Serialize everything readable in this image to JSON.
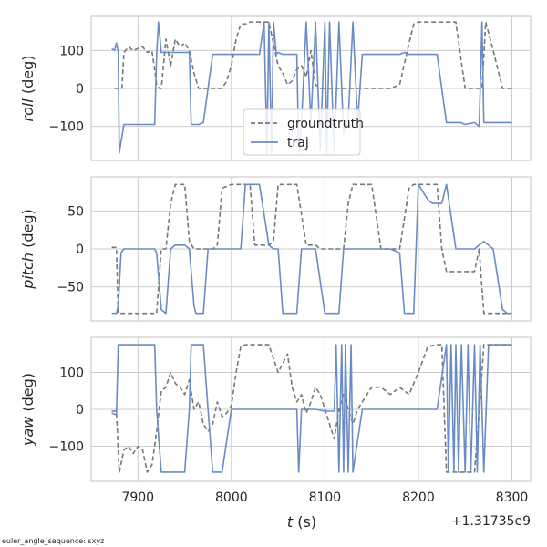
{
  "footer_text": "euler_angle_sequence: sxyz",
  "xaxis": {
    "label_var": "t",
    "label_unit": " (s)",
    "offset_label": "+1.31735e9",
    "ticks": [
      7900,
      8000,
      8100,
      8200,
      8300
    ],
    "tick_labels": [
      "7900",
      "8000",
      "8100",
      "8200",
      "8300"
    ],
    "lim": [
      7850,
      8320
    ]
  },
  "legend": {
    "entries": [
      {
        "label": "groundtruth",
        "color": "#777777",
        "dash": true
      },
      {
        "label": "traj",
        "color": "#6a8cc4",
        "dash": false
      }
    ]
  },
  "colors": {
    "groundtruth": "#777777",
    "traj": "#6a8cc4",
    "grid": "#cccccc",
    "frame": "#cccccc"
  },
  "chart_data": [
    {
      "type": "line",
      "ylabel_var": "roll",
      "ylabel_unit": " (deg)",
      "ylim": [
        -190,
        190
      ],
      "yticks": [
        -100,
        0,
        100
      ],
      "ytick_labels": [
        "−100",
        "0",
        "100"
      ],
      "grid": true,
      "legend_position": "bottom-center",
      "series": [
        {
          "name": "groundtruth",
          "style": "dashed",
          "color": "#777777",
          "x": [
            7875,
            7883,
            7885,
            7890,
            7895,
            7900,
            7905,
            7910,
            7915,
            7920,
            7923,
            7925,
            7930,
            7935,
            7940,
            7945,
            7950,
            7955,
            7960,
            7965,
            7970,
            7975,
            7980,
            7985,
            7990,
            7995,
            8000,
            8005,
            8010,
            8015,
            8020,
            8030,
            8040,
            8050,
            8055,
            8060,
            8065,
            8070,
            8075,
            8080,
            8085,
            8090,
            8095,
            8100,
            8110,
            8120,
            8130,
            8140,
            8150,
            8160,
            8170,
            8180,
            8190,
            8195,
            8200,
            8210,
            8220,
            8230,
            8240,
            8250,
            8260,
            8268,
            8272,
            8280,
            8290,
            8300
          ],
          "y": [
            0,
            0,
            95,
            110,
            100,
            105,
            110,
            95,
            100,
            10,
            0,
            0,
            130,
            60,
            130,
            110,
            120,
            100,
            40,
            0,
            0,
            0,
            0,
            0,
            0,
            20,
            60,
            130,
            170,
            170,
            175,
            175,
            175,
            60,
            40,
            10,
            20,
            50,
            60,
            30,
            100,
            10,
            0,
            0,
            0,
            0,
            0,
            0,
            0,
            0,
            0,
            10,
            120,
            170,
            175,
            175,
            175,
            175,
            175,
            0,
            0,
            0,
            175,
            100,
            0,
            0
          ]
        },
        {
          "name": "traj",
          "style": "solid",
          "color": "#6a8cc4",
          "x": [
            7872,
            7875,
            7877,
            7879,
            7880,
            7885,
            7890,
            7900,
            7910,
            7915,
            7918,
            7920,
            7922,
            7925,
            7930,
            7940,
            7950,
            7955,
            7957,
            7960,
            7962,
            7965,
            7970,
            7980,
            7990,
            7995,
            8000,
            8010,
            8020,
            8030,
            8035,
            8038,
            8040,
            8043,
            8045,
            8048,
            8050,
            8055,
            8060,
            8065,
            8068,
            8070,
            8072,
            8075,
            8080,
            8085,
            8090,
            8095,
            8100,
            8102,
            8105,
            8110,
            8115,
            8120,
            8125,
            8130,
            8135,
            8140,
            8150,
            8160,
            8170,
            8180,
            8185,
            8190,
            8200,
            8210,
            8220,
            8230,
            8235,
            8240,
            8245,
            8250,
            8260,
            8265,
            8268,
            8270,
            8275,
            8280,
            8290,
            8300
          ],
          "y": [
            105,
            100,
            120,
            95,
            -170,
            -95,
            -95,
            -95,
            -95,
            -95,
            -95,
            90,
            175,
            95,
            95,
            95,
            95,
            95,
            -95,
            -95,
            -95,
            -95,
            -90,
            90,
            90,
            90,
            90,
            90,
            90,
            90,
            175,
            -170,
            175,
            -170,
            175,
            90,
            95,
            90,
            90,
            90,
            90,
            90,
            -170,
            -90,
            175,
            -90,
            175,
            -160,
            175,
            -170,
            175,
            -170,
            175,
            -120,
            -80,
            175,
            -90,
            90,
            90,
            90,
            90,
            90,
            95,
            90,
            90,
            90,
            90,
            -90,
            -90,
            -90,
            -90,
            -95,
            -90,
            -100,
            175,
            -90,
            -90,
            -90,
            -90,
            -90
          ]
        }
      ]
    },
    {
      "type": "line",
      "ylabel_var": "pitch",
      "ylabel_unit": " (deg)",
      "ylim": [
        -95,
        95
      ],
      "yticks": [
        -50,
        0,
        50
      ],
      "ytick_labels": [
        "−50",
        "0",
        "50"
      ],
      "grid": true,
      "series": [
        {
          "name": "groundtruth",
          "style": "dashed",
          "color": "#777777",
          "x": [
            7872,
            7877,
            7879,
            7885,
            7890,
            7900,
            7910,
            7915,
            7920,
            7925,
            7930,
            7935,
            7940,
            7945,
            7950,
            7955,
            7960,
            7965,
            7970,
            7975,
            7980,
            7985,
            7990,
            8000,
            8010,
            8015,
            8020,
            8025,
            8030,
            8040,
            8045,
            8050,
            8055,
            8060,
            8070,
            8080,
            8090,
            8095,
            8100,
            8110,
            8120,
            8125,
            8130,
            8140,
            8150,
            8160,
            8170,
            8180,
            8190,
            8195,
            8200,
            8210,
            8220,
            8225,
            8230,
            8240,
            8250,
            8260,
            8265,
            8270,
            8280,
            8290,
            8300
          ],
          "y": [
            2,
            2,
            -85,
            -85,
            -85,
            -85,
            -85,
            -85,
            -85,
            0,
            0,
            60,
            85,
            85,
            85,
            10,
            0,
            0,
            0,
            0,
            0,
            5,
            80,
            85,
            85,
            85,
            85,
            5,
            5,
            5,
            10,
            85,
            85,
            85,
            85,
            5,
            5,
            0,
            0,
            0,
            0,
            60,
            85,
            85,
            85,
            0,
            0,
            0,
            80,
            85,
            85,
            85,
            85,
            0,
            -30,
            -30,
            -30,
            -30,
            0,
            -85,
            -85,
            -85,
            -85
          ]
        },
        {
          "name": "traj",
          "style": "solid",
          "color": "#6a8cc4",
          "x": [
            7872,
            7877,
            7879,
            7882,
            7885,
            7890,
            7900,
            7910,
            7915,
            7918,
            7920,
            7925,
            7930,
            7935,
            7940,
            7945,
            7950,
            7955,
            7960,
            7962,
            7965,
            7970,
            7975,
            7980,
            7990,
            8000,
            8010,
            8015,
            8020,
            8030,
            8040,
            8045,
            8050,
            8055,
            8060,
            8070,
            8075,
            8080,
            8090,
            8100,
            8105,
            8110,
            8115,
            8120,
            8130,
            8140,
            8150,
            8160,
            8170,
            8180,
            8185,
            8190,
            8195,
            8200,
            8210,
            8215,
            8220,
            8225,
            8230,
            8240,
            8250,
            8260,
            8265,
            8270,
            8280,
            8290,
            8295,
            8300
          ],
          "y": [
            -85,
            -85,
            -75,
            -5,
            0,
            0,
            0,
            0,
            0,
            0,
            -5,
            -80,
            -85,
            0,
            5,
            5,
            5,
            0,
            -75,
            -85,
            -85,
            -85,
            0,
            0,
            0,
            0,
            0,
            85,
            85,
            85,
            5,
            0,
            0,
            -85,
            -85,
            -85,
            0,
            0,
            0,
            -85,
            -85,
            -85,
            -85,
            0,
            0,
            0,
            0,
            0,
            0,
            -5,
            -85,
            -85,
            -85,
            85,
            65,
            60,
            60,
            60,
            85,
            0,
            0,
            0,
            5,
            10,
            0,
            -80,
            -85,
            -85
          ]
        }
      ]
    },
    {
      "type": "line",
      "ylabel_var": "yaw",
      "ylabel_unit": " (deg)",
      "ylim": [
        -195,
        195
      ],
      "yticks": [
        -100,
        0,
        100
      ],
      "ytick_labels": [
        "−100",
        "0",
        "100"
      ],
      "grid": true,
      "series": [
        {
          "name": "groundtruth",
          "style": "dashed",
          "color": "#777777",
          "x": [
            7872,
            7877,
            7880,
            7885,
            7890,
            7895,
            7900,
            7905,
            7910,
            7915,
            7920,
            7925,
            7930,
            7935,
            7940,
            7945,
            7950,
            7955,
            7960,
            7965,
            7970,
            7975,
            7980,
            7985,
            7990,
            7995,
            8000,
            8005,
            8010,
            8015,
            8020,
            8030,
            8040,
            8050,
            8060,
            8065,
            8070,
            8075,
            8080,
            8085,
            8090,
            8095,
            8100,
            8105,
            8110,
            8115,
            8120,
            8125,
            8130,
            8135,
            8140,
            8150,
            8160,
            8170,
            8180,
            8190,
            8200,
            8210,
            8220,
            8225,
            8230,
            8240,
            8250,
            8260,
            8265,
            8270,
            8280,
            8290,
            8300
          ],
          "y": [
            -5,
            -5,
            -170,
            -110,
            -100,
            -120,
            -100,
            -110,
            -170,
            -150,
            -60,
            50,
            60,
            100,
            70,
            60,
            40,
            80,
            0,
            20,
            -40,
            -60,
            -40,
            20,
            -20,
            -10,
            10,
            100,
            170,
            175,
            175,
            175,
            175,
            100,
            150,
            60,
            20,
            40,
            -10,
            20,
            60,
            40,
            0,
            -40,
            -80,
            0,
            40,
            0,
            -40,
            0,
            20,
            60,
            60,
            40,
            60,
            40,
            100,
            170,
            175,
            175,
            -170,
            -170,
            -170,
            -170,
            -10,
            175,
            175,
            175,
            175
          ]
        },
        {
          "name": "traj",
          "style": "solid",
          "color": "#6a8cc4",
          "x": [
            7872,
            7877,
            7879,
            7881,
            7885,
            7890,
            7900,
            7910,
            7915,
            7918,
            7920,
            7925,
            7930,
            7940,
            7950,
            7955,
            7957,
            7960,
            7965,
            7970,
            7975,
            7980,
            7985,
            7990,
            8000,
            8010,
            8020,
            8030,
            8040,
            8050,
            8060,
            8070,
            8072,
            8075,
            8080,
            8090,
            8100,
            8110,
            8112,
            8115,
            8118,
            8120,
            8122,
            8125,
            8128,
            8130,
            8140,
            8150,
            8160,
            8170,
            8180,
            8190,
            8200,
            8210,
            8220,
            8230,
            8232,
            8235,
            8238,
            8240,
            8243,
            8246,
            8250,
            8253,
            8256,
            8260,
            8263,
            8266,
            8270,
            8275,
            8280,
            8290,
            8300
          ],
          "y": [
            -10,
            -15,
            175,
            175,
            175,
            175,
            175,
            175,
            175,
            175,
            0,
            -170,
            -170,
            -170,
            -170,
            0,
            175,
            175,
            175,
            175,
            0,
            -170,
            -170,
            -170,
            0,
            0,
            0,
            0,
            0,
            0,
            0,
            0,
            -170,
            0,
            0,
            0,
            -5,
            -5,
            175,
            -170,
            175,
            -170,
            175,
            -170,
            175,
            -170,
            0,
            0,
            0,
            0,
            0,
            0,
            0,
            0,
            0,
            175,
            -170,
            175,
            -170,
            175,
            -170,
            175,
            -170,
            175,
            -170,
            175,
            -170,
            175,
            -170,
            175,
            175,
            175,
            175
          ]
        }
      ]
    }
  ]
}
